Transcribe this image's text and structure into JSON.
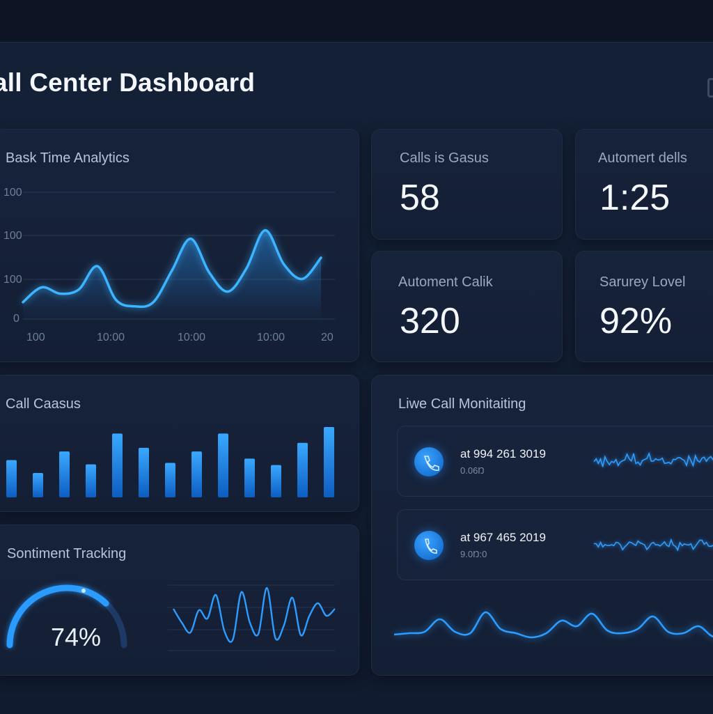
{
  "header": {
    "title": "all Center Dashboard"
  },
  "colors": {
    "accent": "#2a9bff",
    "background": "#0f172a",
    "card": "#17233b"
  },
  "analytics": {
    "title": "Bask Time Analytics",
    "y_ticks": [
      "100",
      "100",
      "100",
      "0"
    ],
    "x_ticks": [
      "100",
      "10:00",
      "10:00",
      "10:00",
      "20"
    ],
    "chart_data": {
      "type": "area",
      "title": "Bask Time Analytics",
      "ylim": [
        0,
        300
      ],
      "grid": true,
      "values": [
        40,
        75,
        60,
        70,
        125,
        45,
        30,
        40,
        115,
        190,
        110,
        65,
        120,
        210,
        130,
        95,
        145
      ]
    }
  },
  "stats": [
    {
      "label": "Calls is Gasus",
      "value": "58"
    },
    {
      "label": "Automert dells",
      "value": "1:25"
    },
    {
      "label": "Automent Calik",
      "value": "320"
    },
    {
      "label": "Sarurey Lovel",
      "value": "92%"
    }
  ],
  "calls": {
    "title": "Call Caasus",
    "chart_data": {
      "type": "bar",
      "values": [
        52,
        34,
        64,
        46,
        89,
        69,
        48,
        64,
        89,
        54,
        45,
        76,
        98
      ]
    }
  },
  "sentiment": {
    "title": "Sontiment Tracking",
    "gauge_value": "74%",
    "gauge_fraction": 0.74
  },
  "live": {
    "title": "Liwe Call Monitaiting",
    "rows": [
      {
        "number": "at 994 261 3019",
        "sub": "0.06Ŋ",
        "icon": "phone-icon"
      },
      {
        "number": "at 967 465 2019",
        "sub": "9.0Ŋ:0",
        "icon": "phone-icon"
      }
    ]
  }
}
